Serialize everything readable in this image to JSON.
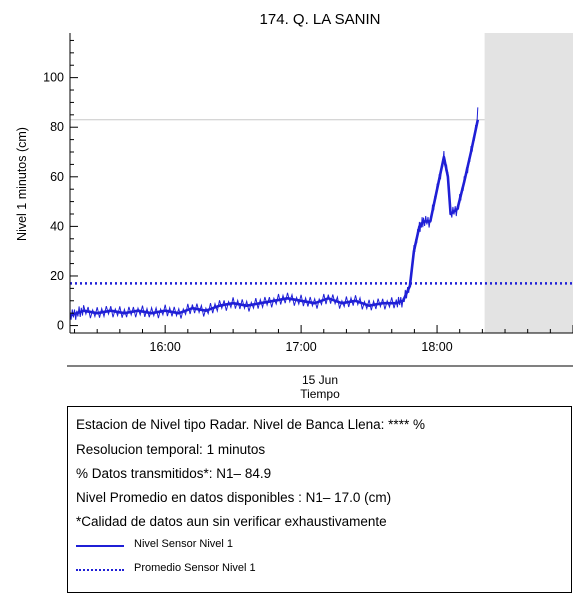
{
  "chart_data": {
    "type": "line",
    "title": "174. Q. LA SANIN",
    "ylabel": "Nivel 1 minutos (cm)",
    "xlabel": "Tiempo",
    "date_label": "15 Jun",
    "x_unit": "hours (time of day, 15 Jun)",
    "xlim": [
      15.3,
      19.0
    ],
    "ylim": [
      -3,
      118
    ],
    "y_ticks": [
      0,
      20,
      40,
      60,
      80,
      100
    ],
    "x_ticks": [
      16,
      17,
      18
    ],
    "x_tick_labels": [
      "16:00",
      "17:00",
      "18:00"
    ],
    "bankfull_level": 83,
    "no_data_region": [
      18.35,
      19.0
    ],
    "series": [
      {
        "name": "Nivel Sensor Nivel 1",
        "color": "#1f1fd6",
        "style": "solid",
        "x": [
          15.3,
          15.35,
          15.4,
          15.5,
          15.6,
          15.7,
          15.8,
          15.9,
          16.0,
          16.1,
          16.2,
          16.3,
          16.4,
          16.5,
          16.6,
          16.7,
          16.8,
          16.9,
          17.0,
          17.1,
          17.2,
          17.3,
          17.4,
          17.5,
          17.6,
          17.7,
          17.75,
          17.8,
          17.83,
          17.87,
          17.9,
          17.95,
          18.0,
          18.05,
          18.08,
          18.1,
          18.15,
          18.2,
          18.25,
          18.3
        ],
        "y": [
          4,
          5,
          6,
          5,
          6,
          5,
          6,
          5,
          6,
          5,
          7,
          6,
          8,
          9,
          8,
          9,
          10,
          11,
          10,
          9,
          11,
          9,
          10,
          8,
          9,
          9,
          10,
          16,
          30,
          40,
          42,
          42,
          55,
          68,
          60,
          45,
          47,
          58,
          70,
          83
        ]
      },
      {
        "name": "Promedio Sensor Nivel 1",
        "color": "#1f1fd6",
        "style": "dotted",
        "value": 17.0
      }
    ],
    "legend_placement": "bottom, inside info box",
    "grid": false
  },
  "info": {
    "line1": "Estacion de Nivel tipo Radar. Nivel de Banca Llena: **** %",
    "line2": "Resolucion temporal: 1 minutos",
    "line3": "% Datos transmitidos*: N1– 84.9",
    "line4": "Nivel Promedio en datos disponibles : N1– 17.0 (cm)",
    "line5": "*Calidad de datos aun sin verificar exhaustivamente",
    "legend_solid": "Nivel Sensor Nivel 1",
    "legend_dotted": "Promedio Sensor Nivel 1"
  }
}
